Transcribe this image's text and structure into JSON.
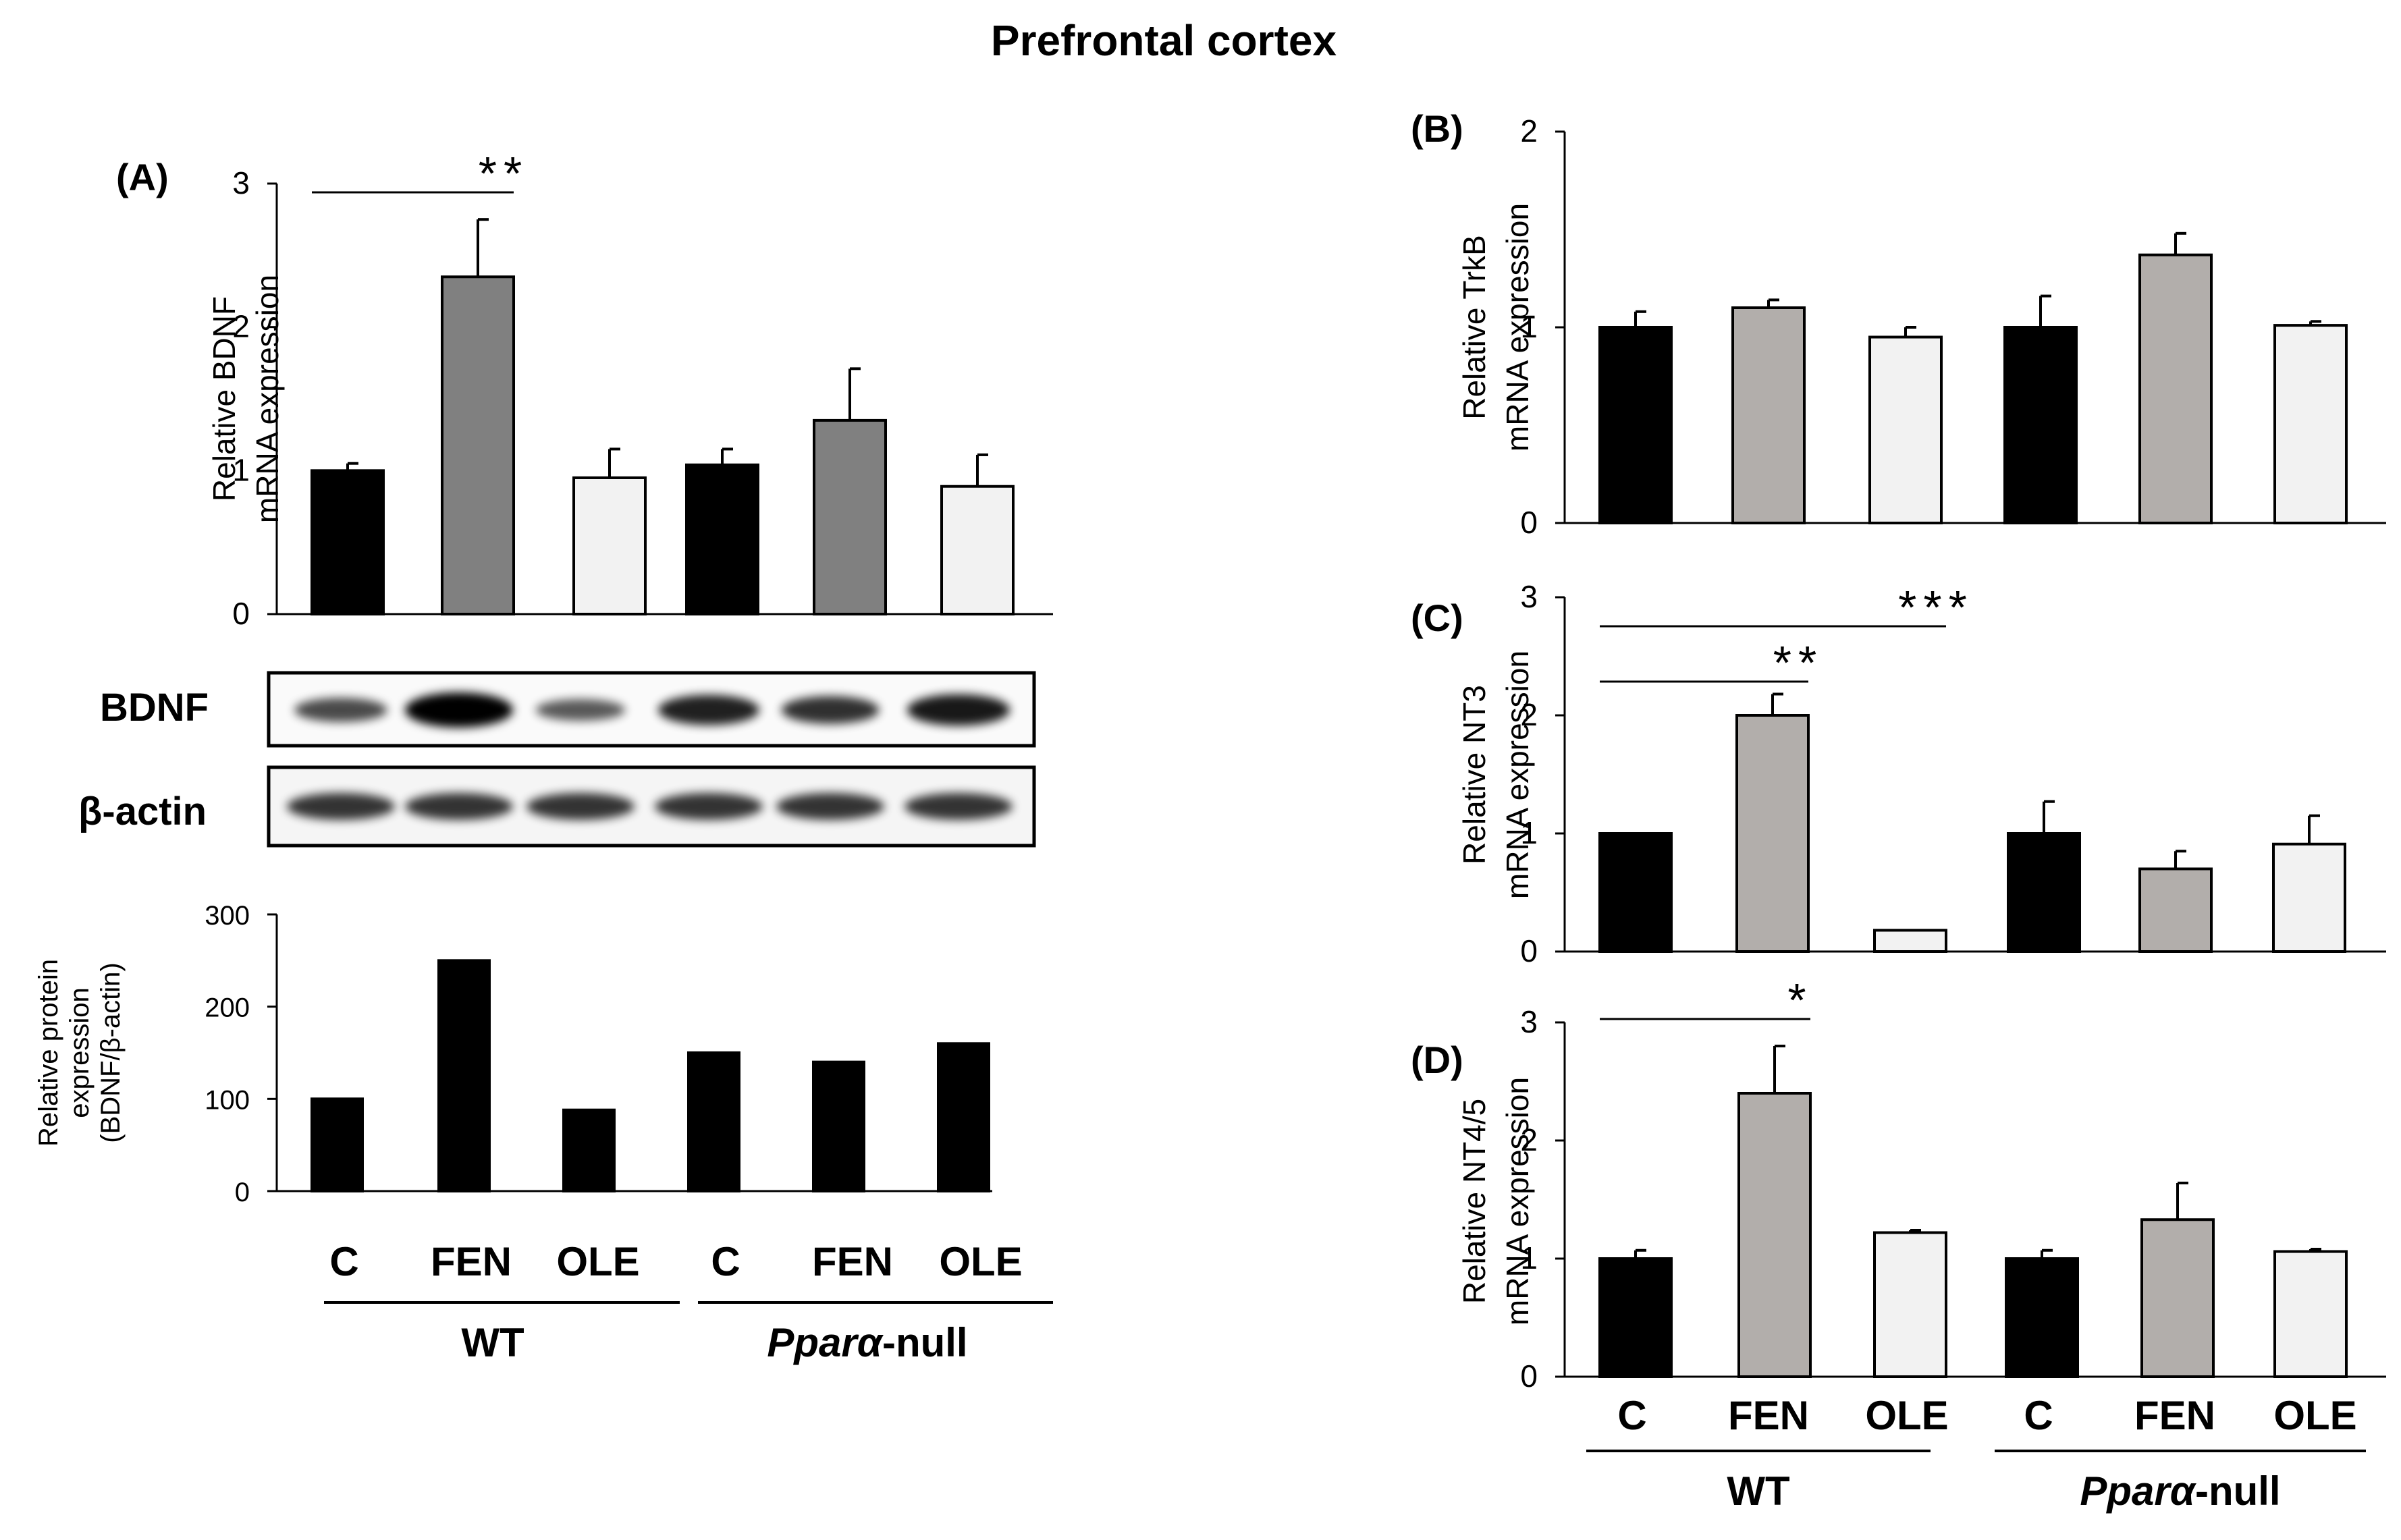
{
  "title": "Prefrontal cortex",
  "colors": {
    "black": "#000000",
    "dark_gray": "#808080",
    "light_gray": "#b2aeab",
    "white_bar": "#f2f2f2"
  },
  "group_labels": {
    "wt": "WT",
    "null_prefix": "Ppar",
    "null_alpha": "α",
    "null_suffix": "-null"
  },
  "blot": {
    "bdnf_label": "BDNF",
    "actin_label": "β-actin",
    "bdnf_band_intensity": [
      0.55,
      1.0,
      0.45,
      0.8,
      0.7,
      0.85
    ],
    "actin_band_intensity": [
      0.8,
      0.8,
      0.8,
      0.8,
      0.8,
      0.8
    ]
  },
  "chart_data": [
    {
      "id": "A",
      "type": "bar",
      "panel_label": "(A)",
      "ylabel_lines": [
        "Relative BDNF",
        "mRNA expression"
      ],
      "categories": [
        "C",
        "FEN",
        "OLE",
        "C",
        "FEN",
        "OLE"
      ],
      "values": [
        1.0,
        2.35,
        0.95,
        1.04,
        1.35,
        0.89
      ],
      "errors": [
        0.05,
        0.4,
        0.2,
        0.11,
        0.36,
        0.22
      ],
      "colors": [
        "#000000",
        "#808080",
        "#f2f2f2",
        "#000000",
        "#808080",
        "#f2f2f2"
      ],
      "ylim": [
        0,
        3
      ],
      "yticks": [
        0,
        1,
        2,
        3
      ],
      "significance": [
        {
          "from": 0,
          "to": 1,
          "label": "**"
        }
      ]
    },
    {
      "id": "A-protein",
      "type": "bar",
      "ylabel_lines": [
        "Relative protein",
        "expression",
        "(BDNF/β-actin)"
      ],
      "categories": [
        "C",
        "FEN",
        "OLE",
        "C",
        "FEN",
        "OLE"
      ],
      "values": [
        100,
        250,
        88,
        150,
        140,
        160
      ],
      "colors": [
        "#000000",
        "#000000",
        "#000000",
        "#000000",
        "#000000",
        "#000000"
      ],
      "ylim": [
        0,
        300
      ],
      "yticks": [
        0,
        100,
        200,
        300
      ]
    },
    {
      "id": "B",
      "type": "bar",
      "panel_label": "(B)",
      "ylabel_lines": [
        "Relative TrkB",
        "mRNA expression"
      ],
      "categories": [
        "C",
        "FEN",
        "OLE",
        "C",
        "FEN",
        "OLE"
      ],
      "values": [
        1.0,
        1.1,
        0.95,
        1.0,
        1.37,
        1.01
      ],
      "errors": [
        0.08,
        0.04,
        0.05,
        0.16,
        0.11,
        0.02
      ],
      "colors": [
        "#000000",
        "#b2aeab",
        "#f2f2f2",
        "#000000",
        "#b2aeab",
        "#f2f2f2"
      ],
      "ylim": [
        0,
        2
      ],
      "yticks": [
        0,
        1,
        2
      ]
    },
    {
      "id": "C",
      "type": "bar",
      "panel_label": "(C)",
      "ylabel_lines": [
        "Relative  NT3",
        "mRNA expression"
      ],
      "categories": [
        "C",
        "FEN",
        "OLE",
        "C",
        "FEN",
        "OLE"
      ],
      "values": [
        1.0,
        2.0,
        0.18,
        1.0,
        0.7,
        0.91
      ],
      "errors": [
        0,
        0.18,
        0,
        0.27,
        0.15,
        0.24
      ],
      "colors": [
        "#000000",
        "#b2aeab",
        "#f2f2f2",
        "#000000",
        "#b2aeab",
        "#f2f2f2"
      ],
      "ylim": [
        0,
        3
      ],
      "yticks": [
        0,
        1,
        2,
        3
      ],
      "significance": [
        {
          "from": 0,
          "to": 1,
          "label": "**"
        },
        {
          "from": 0,
          "to": 2,
          "label": "***"
        }
      ]
    },
    {
      "id": "D",
      "type": "bar",
      "panel_label": "(D)",
      "ylabel_lines": [
        "Relative  NT4/5",
        "mRNA expression"
      ],
      "categories": [
        "C",
        "FEN",
        "OLE",
        "C",
        "FEN",
        "OLE"
      ],
      "values": [
        1.0,
        2.4,
        1.22,
        1.0,
        1.33,
        1.06
      ],
      "errors": [
        0.07,
        0.4,
        0.02,
        0.07,
        0.31,
        0.02
      ],
      "colors": [
        "#000000",
        "#b2aeab",
        "#f2f2f2",
        "#000000",
        "#b2aeab",
        "#f2f2f2"
      ],
      "ylim": [
        0,
        3
      ],
      "yticks": [
        0,
        1,
        2,
        3
      ],
      "significance": [
        {
          "from": 0,
          "to": 1,
          "label": "*"
        }
      ]
    }
  ]
}
